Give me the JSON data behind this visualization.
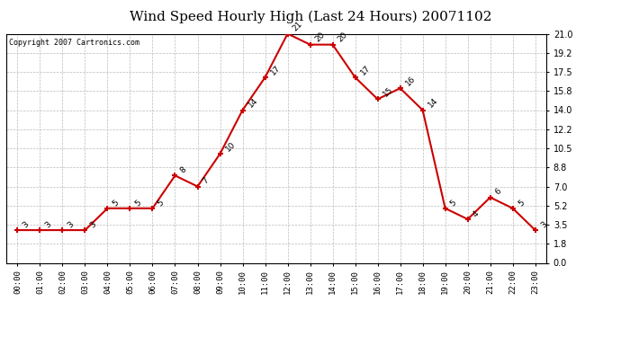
{
  "title": "Wind Speed Hourly High (Last 24 Hours) 20071102",
  "copyright": "Copyright 2007 Cartronics.com",
  "hours": [
    0,
    1,
    2,
    3,
    4,
    5,
    6,
    7,
    8,
    9,
    10,
    11,
    12,
    13,
    14,
    15,
    16,
    17,
    18,
    19,
    20,
    21,
    22,
    23
  ],
  "x_labels": [
    "00:00",
    "01:00",
    "02:00",
    "03:00",
    "04:00",
    "05:00",
    "06:00",
    "07:00",
    "08:00",
    "09:00",
    "10:00",
    "11:00",
    "12:00",
    "13:00",
    "14:00",
    "15:00",
    "16:00",
    "17:00",
    "18:00",
    "19:00",
    "20:00",
    "21:00",
    "22:00",
    "23:00"
  ],
  "values": [
    3,
    3,
    3,
    3,
    5,
    5,
    5,
    8,
    7,
    10,
    14,
    17,
    21,
    20,
    20,
    17,
    15,
    16,
    14,
    5,
    4,
    6,
    5,
    3
  ],
  "line_color": "#cc0000",
  "marker_color": "#cc0000",
  "bg_color": "#ffffff",
  "plot_bg_color": "#ffffff",
  "grid_color": "#bbbbbb",
  "title_fontsize": 11,
  "yticks": [
    0.0,
    1.8,
    3.5,
    5.2,
    7.0,
    8.8,
    10.5,
    12.2,
    14.0,
    15.8,
    17.5,
    19.2,
    21.0
  ],
  "ylim": [
    0.0,
    21.0
  ],
  "annotation_color": "#000000",
  "annotation_fontsize": 6.5
}
